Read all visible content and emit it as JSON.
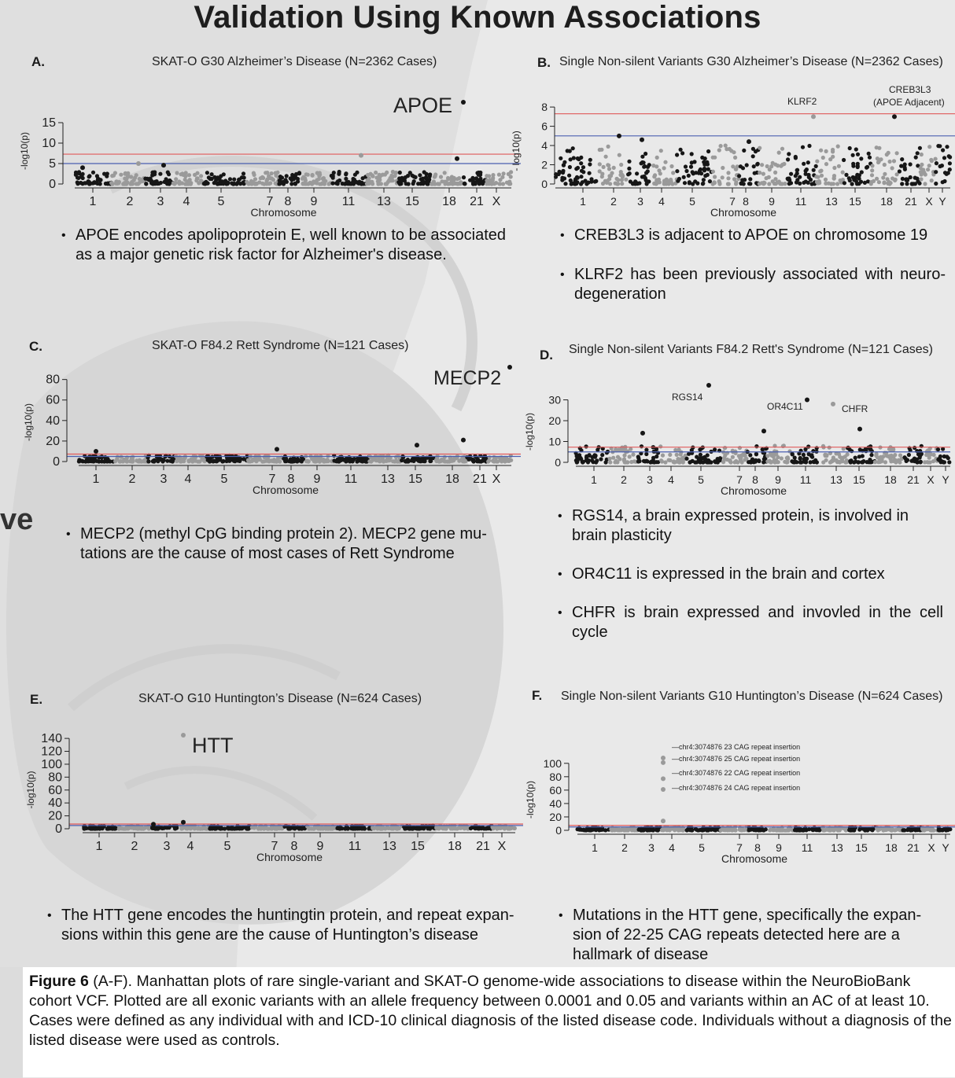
{
  "title": "Validation Using Known Associations",
  "side_fragment": "ve",
  "panels": {
    "A": {
      "letter": "A.",
      "title": "SKAT-O G30 Alzheimer’s Disease (N=2362 Cases)",
      "bullets": [
        "APOE encodes apolipoprotein E, well known to be associated as a major genetic risk factor for Alzheimer's disease."
      ]
    },
    "B": {
      "letter": "B.",
      "title": "Single Non-silent Variants G30 Alzheimer’s Disease (N=2362 Cases)",
      "bullets": [
        "CREB3L3 is adjacent to APOE on chromosome 19",
        "KLRF2 has been previously associated with neuro-degeneration"
      ]
    },
    "C": {
      "letter": "C.",
      "title": "SKAT-O F84.2 Rett Syndrome (N=121 Cases)",
      "bullets": [
        "MECP2 (methyl CpG binding protein 2). MECP2 gene mu-tations are the cause of most cases of Rett Syndrome"
      ]
    },
    "D": {
      "letter": "D.",
      "title": "Single Non-silent Variants F84.2 Rett's Syndrome (N=121 Cases)",
      "bullets": [
        "RGS14, a brain expressed protein, is involved in brain plasticity",
        "OR4C11 is expressed in the brain and cortex",
        "CHFR  is brain expressed and invovled in the cell cycle"
      ]
    },
    "E": {
      "letter": "E.",
      "title": "SKAT-O G10 Huntington’s Disease (N=624 Cases)",
      "bullets": [
        "The HTT gene encodes the huntingtin protein, and repeat expan-sions within this gene are the cause of Huntington’s disease"
      ]
    },
    "F": {
      "letter": "F.",
      "title": "Single Non-silent Variants G10 Huntington’s Disease (N=624 Cases)",
      "bullets": [
        "Mutations in the HTT gene, specifically the expan-sion of 22-25 CAG repeats detected here are a hallmark of disease"
      ]
    }
  },
  "caption": {
    "label": "Figure 6",
    "text": " (A-F). Manhattan plots of rare single-variant and SKAT-O genome-wide associations to disease within the NeuroBioBank cohort VCF. Plotted are all exonic variants with an allele frequency between 0.0001 and 0.05 and variants within an AC of at least 10. Cases were defined as any individual with and ICD-10 clinical diagnosis of the listed disease code. Individuals without a diagnosis of the listed disease were used as controls."
  },
  "colors": {
    "chrom_dark": "#161616",
    "chrom_light": "#9a9a9a",
    "bonferroni_line": "#e05a5a",
    "suggestive_line": "#4a5fb0",
    "background": "#e9e9e9"
  },
  "chart_data": [
    {
      "id": "A",
      "type": "scatter",
      "subtype": "manhattan",
      "xlabel": "Chromosome",
      "ylabel": "-log10(p)",
      "ylim": [
        0,
        20
      ],
      "yticks": [
        0,
        5,
        10,
        15
      ],
      "xticks": [
        "1",
        "2",
        "3",
        "4",
        "5",
        "7",
        "8",
        "9",
        "11",
        "13",
        "15",
        "18",
        "21",
        "X"
      ],
      "thresholds": [
        7.3,
        5
      ],
      "top_hits": [
        {
          "label": "APOE",
          "y": 20
        },
        {
          "label": "",
          "y": 7
        },
        {
          "label": "",
          "y": 6.2
        },
        {
          "label": "",
          "y": 5
        },
        {
          "label": "",
          "y": 4.6
        },
        {
          "label": "",
          "y": 4
        }
      ],
      "baseline_max": 3,
      "annotations": [
        "APOE"
      ]
    },
    {
      "id": "B",
      "type": "scatter",
      "subtype": "manhattan",
      "xlabel": "Chromosome",
      "ylabel": "- log10(p)",
      "ylim": [
        0,
        8.5
      ],
      "yticks": [
        0,
        2,
        4,
        6,
        8
      ],
      "xticks": [
        "1",
        "2",
        "3",
        "4",
        "5",
        "7",
        "8",
        "9",
        "11",
        "13",
        "15",
        "18",
        "21",
        "X",
        "Y"
      ],
      "thresholds": [
        7.3,
        5
      ],
      "top_hits": [
        {
          "label": "KLRF2",
          "y": 7
        },
        {
          "label": "CREB3L3 (APOE Adjacent)",
          "y": 7
        },
        {
          "label": "",
          "y": 5
        },
        {
          "label": "",
          "y": 4.6
        },
        {
          "label": "",
          "y": 4.4
        }
      ],
      "baseline_max": 4,
      "annotations": [
        "KLRF2",
        "CREB3L3",
        "(APOE Adjacent)"
      ]
    },
    {
      "id": "C",
      "type": "scatter",
      "subtype": "manhattan",
      "xlabel": "Chromosome",
      "ylabel": "-log10(p)",
      "ylim": [
        0,
        92
      ],
      "yticks": [
        0,
        20,
        40,
        60,
        80
      ],
      "xticks": [
        "1",
        "2",
        "3",
        "4",
        "5",
        "7",
        "8",
        "9",
        "11",
        "13",
        "15",
        "18",
        "21",
        "X"
      ],
      "thresholds": [
        7.3,
        5
      ],
      "top_hits": [
        {
          "label": "MECP2",
          "y": 92
        },
        {
          "label": "",
          "y": 21
        },
        {
          "label": "",
          "y": 16
        },
        {
          "label": "",
          "y": 12
        },
        {
          "label": "",
          "y": 10
        }
      ],
      "baseline_max": 6,
      "annotations": [
        "MECP2"
      ]
    },
    {
      "id": "D",
      "type": "scatter",
      "subtype": "manhattan",
      "xlabel": "Chromosome",
      "ylabel": "-log10(p)",
      "ylim": [
        0,
        37
      ],
      "yticks": [
        0,
        10,
        20,
        30
      ],
      "xticks": [
        "1",
        "2",
        "3",
        "4",
        "5",
        "7",
        "8",
        "9",
        "11",
        "13",
        "15",
        "18",
        "21",
        "X",
        "Y"
      ],
      "thresholds": [
        7.3,
        5
      ],
      "top_hits": [
        {
          "label": "RGS14",
          "y": 37
        },
        {
          "label": "OR4C11",
          "y": 30
        },
        {
          "label": "CHFR",
          "y": 28
        },
        {
          "label": "",
          "y": 16
        },
        {
          "label": "",
          "y": 15
        },
        {
          "label": "",
          "y": 14
        }
      ],
      "baseline_max": 8,
      "annotations": [
        "RGS14",
        "OR4C11",
        "CHFR"
      ]
    },
    {
      "id": "E",
      "type": "scatter",
      "subtype": "manhattan",
      "xlabel": "Chromosome",
      "ylabel": "-log10(p)",
      "ylim": [
        0,
        145
      ],
      "yticks": [
        0,
        20,
        40,
        60,
        80,
        100,
        120,
        140
      ],
      "xticks": [
        "1",
        "2",
        "3",
        "4",
        "5",
        "7",
        "8",
        "9",
        "11",
        "13",
        "15",
        "18",
        "21",
        "X"
      ],
      "thresholds": [
        7.3,
        5
      ],
      "top_hits": [
        {
          "label": "HTT",
          "y": 145
        },
        {
          "label": "",
          "y": 10
        },
        {
          "label": "",
          "y": 7
        }
      ],
      "baseline_max": 5,
      "annotations": [
        "HTT"
      ]
    },
    {
      "id": "F",
      "type": "scatter",
      "subtype": "manhattan",
      "xlabel": "Chromosome",
      "ylabel": "-log10(p)",
      "ylim": [
        0,
        115
      ],
      "yticks": [
        0,
        20,
        40,
        60,
        80,
        100
      ],
      "xticks": [
        "1",
        "2",
        "3",
        "4",
        "5",
        "7",
        "8",
        "9",
        "11",
        "13",
        "15",
        "18",
        "21",
        "X",
        "Y"
      ],
      "thresholds": [
        7.3,
        5
      ],
      "top_hits": [
        {
          "label": "chr4:3074876 23 CAG repeat insertion",
          "y": 108
        },
        {
          "label": "chr4:3074876 25 CAG repeat insertion",
          "y": 101
        },
        {
          "label": "chr4:3074876 22 CAG repeat insertion",
          "y": 77
        },
        {
          "label": "chr4:3074876 24 CAG repeat insertion",
          "y": 61
        },
        {
          "label": "",
          "y": 14
        }
      ],
      "baseline_max": 5,
      "annotations": [
        "chr4:3074876 23 CAG repeat insertion",
        "chr4:3074876 25 CAG repeat insertion",
        "chr4:3074876 22 CAG repeat insertion",
        "chr4:3074876 24 CAG repeat insertion"
      ]
    }
  ]
}
